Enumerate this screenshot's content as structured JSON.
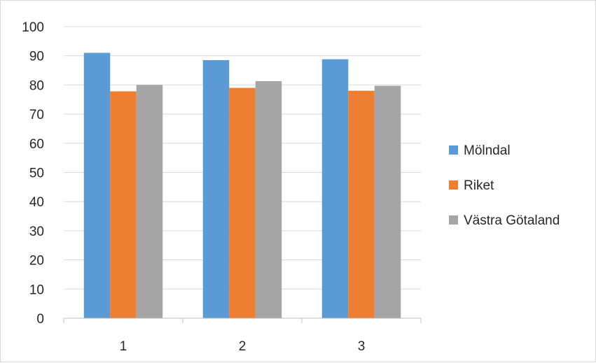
{
  "chart_data": {
    "type": "bar",
    "categories": [
      "1",
      "2",
      "3"
    ],
    "series": [
      {
        "name": "Mölndal",
        "values": [
          91,
          88.5,
          88.8
        ],
        "color": "#5b9bd5"
      },
      {
        "name": "Riket",
        "values": [
          77.8,
          79,
          78
        ],
        "color": "#ed7d31"
      },
      {
        "name": "Västra Götaland",
        "values": [
          80,
          81.3,
          79.7
        ],
        "color": "#a5a5a5"
      }
    ],
    "yticks": [
      "0",
      "10",
      "20",
      "30",
      "40",
      "50",
      "60",
      "70",
      "80",
      "90",
      "100"
    ],
    "ylim": [
      0,
      100
    ],
    "grid": true,
    "legend_position": "right",
    "title": "",
    "xlabel": "",
    "ylabel": ""
  }
}
